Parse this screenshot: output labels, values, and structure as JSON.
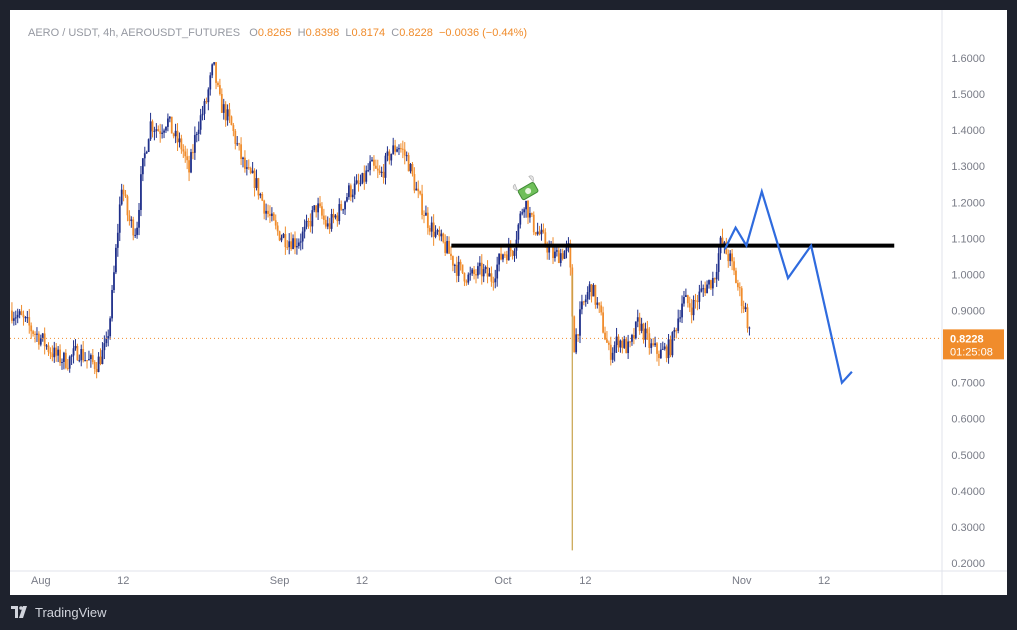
{
  "legend": {
    "symbol": "AERO / USDT, 4h, AEROUSDT_FUTURES",
    "o_label": "O",
    "open": "0.8265",
    "h_label": "H",
    "high": "0.8398",
    "l_label": "L",
    "low": "0.8174",
    "c_label": "C",
    "close": "0.8228",
    "change": "−0.0036 (−0.44%)"
  },
  "price_tag": {
    "price": "0.8228",
    "countdown": "01:25:08"
  },
  "brand": "TradingView",
  "colors": {
    "up": "#1f2f8a",
    "down": "#f08c2c",
    "level": "#000000",
    "projection": "#2f6bde",
    "tag": "#f08c2c"
  },
  "chart_data": {
    "type": "line",
    "candles_close": [
      [
        0.0,
        0.9
      ],
      [
        1.4,
        0.88
      ],
      [
        2.7,
        0.85
      ],
      [
        4.1,
        0.82
      ],
      [
        5.2,
        0.79
      ],
      [
        6.2,
        0.77
      ],
      [
        7.5,
        0.76
      ],
      [
        8.9,
        0.79
      ],
      [
        10.1,
        0.76
      ],
      [
        11.2,
        0.75
      ],
      [
        12.5,
        0.8
      ],
      [
        13.1,
        0.9
      ],
      [
        13.7,
        1.05
      ],
      [
        14.5,
        1.25
      ],
      [
        15.4,
        1.15
      ],
      [
        16.4,
        1.12
      ],
      [
        17.1,
        1.28
      ],
      [
        18.2,
        1.42
      ],
      [
        19.4,
        1.4
      ],
      [
        20.4,
        1.43
      ],
      [
        21.4,
        1.38
      ],
      [
        22.4,
        1.35
      ],
      [
        23.2,
        1.28
      ],
      [
        24.3,
        1.41
      ],
      [
        25.4,
        1.47
      ],
      [
        26.4,
        1.58
      ],
      [
        27.2,
        1.48
      ],
      [
        28.6,
        1.42
      ],
      [
        29.6,
        1.35
      ],
      [
        30.7,
        1.28
      ],
      [
        31.8,
        1.26
      ],
      [
        33.2,
        1.18
      ],
      [
        34.6,
        1.12
      ],
      [
        35.8,
        1.1
      ],
      [
        37.2,
        1.09
      ],
      [
        38.4,
        1.12
      ],
      [
        39.8,
        1.19
      ],
      [
        41.2,
        1.13
      ],
      [
        42.6,
        1.17
      ],
      [
        44.0,
        1.23
      ],
      [
        45.6,
        1.25
      ],
      [
        46.8,
        1.3
      ],
      [
        48.1,
        1.27
      ],
      [
        49.2,
        1.33
      ],
      [
        50.4,
        1.36
      ],
      [
        51.6,
        1.32
      ],
      [
        52.9,
        1.22
      ],
      [
        54.2,
        1.15
      ],
      [
        55.6,
        1.1
      ],
      [
        56.7,
        1.07
      ],
      [
        58.0,
        1.02
      ],
      [
        59.6,
        0.99
      ],
      [
        61.1,
        1.01
      ],
      [
        62.5,
        0.99
      ],
      [
        64.0,
        1.06
      ],
      [
        65.3,
        1.07
      ],
      [
        66.8,
        1.21
      ],
      [
        67.8,
        1.14
      ],
      [
        69.1,
        1.1
      ],
      [
        70.6,
        1.05
      ],
      [
        71.7,
        1.06
      ],
      [
        72.6,
        1.07
      ],
      [
        73.2,
        0.8
      ],
      [
        74.2,
        0.9
      ],
      [
        75.4,
        0.97
      ],
      [
        76.6,
        0.89
      ],
      [
        77.8,
        0.78
      ],
      [
        79.0,
        0.82
      ],
      [
        80.4,
        0.79
      ],
      [
        81.6,
        0.87
      ],
      [
        83.1,
        0.8
      ],
      [
        84.4,
        0.78
      ],
      [
        85.8,
        0.8
      ],
      [
        87.3,
        0.93
      ],
      [
        88.6,
        0.91
      ],
      [
        90.0,
        0.96
      ],
      [
        91.4,
        0.99
      ],
      [
        92.3,
        1.09
      ],
      [
        93.5,
        1.04
      ],
      [
        94.7,
        0.95
      ],
      [
        95.5,
        0.9
      ],
      [
        96.0,
        0.84
      ],
      [
        96.2,
        0.8228
      ]
    ],
    "annotations": [
      {
        "type": "horizontal-level",
        "price": 1.08
      },
      {
        "type": "projection-path",
        "points": [
          [
            92.8,
            1.07
          ],
          [
            94.2,
            1.13
          ],
          [
            95.6,
            1.08
          ],
          [
            97.6,
            1.23
          ],
          [
            101.0,
            0.99
          ],
          [
            104.0,
            1.08
          ],
          [
            108.0,
            0.7
          ],
          [
            109.3,
            0.73
          ]
        ]
      },
      {
        "type": "wick",
        "x": 73.0,
        "low": 0.235,
        "high": 1.0
      },
      {
        "type": "emoji-marker",
        "x": 67.3,
        "price": 1.23,
        "symbol": "money-with-wings"
      }
    ],
    "y_ticks": [
      "1.6000",
      "1.5000",
      "1.4000",
      "1.3000",
      "1.2000",
      "1.1000",
      "1.0000",
      "0.9000",
      "0.8000",
      "0.7000",
      "0.6000",
      "0.5000",
      "0.4000",
      "0.3000",
      "0.2000"
    ],
    "x_ticks": [
      {
        "x": 4.0,
        "label": "Aug"
      },
      {
        "x": 14.7,
        "label": "12"
      },
      {
        "x": 35.0,
        "label": "Sep"
      },
      {
        "x": 45.7,
        "label": "12"
      },
      {
        "x": 64.0,
        "label": "Oct"
      },
      {
        "x": 74.7,
        "label": "12"
      },
      {
        "x": 95.0,
        "label": "Nov"
      },
      {
        "x": 105.7,
        "label": "12"
      }
    ],
    "ylim": [
      0.2,
      1.65
    ],
    "xlim": [
      0,
      121
    ],
    "last_price": 0.8228
  }
}
